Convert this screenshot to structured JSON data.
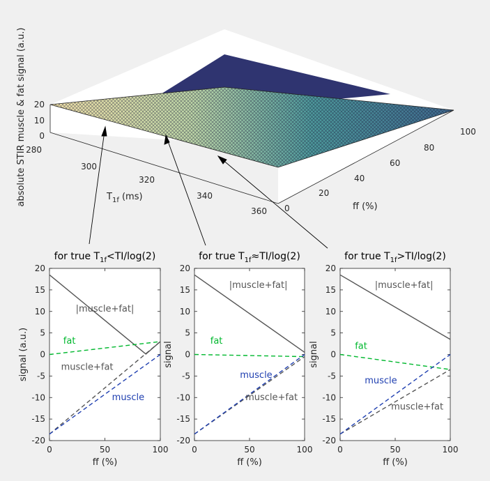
{
  "surface": {
    "zlabel": "absolute STIR muscle & fat signal (a.u.)",
    "z_ticks": [
      "20",
      "10",
      "0"
    ],
    "t1_label_main": "T",
    "t1_label_sub": "1f",
    "t1_label_unit": " (ms)",
    "t1_ticks": [
      "280",
      "300",
      "320",
      "340",
      "360"
    ],
    "ff_label": "ff (%)",
    "ff_ticks": [
      "0",
      "20",
      "40",
      "60",
      "80",
      "100"
    ]
  },
  "chart_data": [
    {
      "type": "surface",
      "xlabel": "T1f (ms)",
      "xlim": [
        280,
        360
      ],
      "ylabel": "ff (%)",
      "ylim": [
        0,
        100
      ],
      "zlabel": "absolute STIR muscle & fat signal (a.u.)",
      "zlim": [
        0,
        20
      ],
      "corner_values": [
        {
          "t1f": 280,
          "ff": 0,
          "signal": 18.5
        },
        {
          "t1f": 360,
          "ff": 0,
          "signal": 18.5
        },
        {
          "t1f": 280,
          "ff": 100,
          "signal": 3
        },
        {
          "t1f": 360,
          "ff": 100,
          "signal": 2.5
        }
      ]
    },
    {
      "type": "line",
      "title_pre": "for true T",
      "title_sub": "1f",
      "title_post": "<TI/log(2)",
      "xlabel": "ff (%)",
      "ylabel": "signal (a.u.)",
      "xlim": [
        0,
        100
      ],
      "ylim": [
        -20,
        20
      ],
      "xticks": [
        "0",
        "50",
        "100"
      ],
      "yticks": [
        "20",
        "15",
        "10",
        "5",
        "0",
        "-5",
        "-10",
        "-15",
        "-20"
      ],
      "series": [
        {
          "name": "|muscle+fat|",
          "color": "#555555",
          "dash": false,
          "x": [
            0,
            87,
            100
          ],
          "values": [
            18.5,
            0.1,
            3
          ]
        },
        {
          "name": "fat",
          "color": "#00b82e",
          "dash": true,
          "x": [
            0,
            100
          ],
          "values": [
            0,
            3
          ]
        },
        {
          "name": "muscle+fat",
          "color": "#555555",
          "dash": true,
          "x": [
            0,
            100
          ],
          "values": [
            -18.5,
            3
          ]
        },
        {
          "name": "muscle",
          "color": "#1f3fb0",
          "dash": true,
          "x": [
            0,
            100
          ],
          "values": [
            -18.5,
            0
          ]
        }
      ],
      "labels": [
        {
          "text": "|muscle+fat|",
          "color": "#555555",
          "x": 50,
          "y": 10
        },
        {
          "text": "fat",
          "color": "#00b82e",
          "x": 18,
          "y": 2.5
        },
        {
          "text": "muscle+fat",
          "color": "#555555",
          "x": 34,
          "y": -3.6
        },
        {
          "text": "muscle",
          "color": "#1f3fb0",
          "x": 71,
          "y": -10.6
        }
      ]
    },
    {
      "type": "line",
      "title_pre": "for true T",
      "title_sub": "1f",
      "title_post": "≈TI/log(2)",
      "xlabel": "ff (%)",
      "ylabel": "signal",
      "xlim": [
        0,
        100
      ],
      "ylim": [
        -20,
        20
      ],
      "xticks": [
        "0",
        "50",
        "100"
      ],
      "yticks": [
        "20",
        "15",
        "10",
        "5",
        "0",
        "-5",
        "-10",
        "-15",
        "-20"
      ],
      "series": [
        {
          "name": "|muscle+fat|",
          "color": "#555555",
          "dash": false,
          "x": [
            0,
            100
          ],
          "values": [
            18.5,
            0.5
          ]
        },
        {
          "name": "fat",
          "color": "#00b82e",
          "dash": true,
          "x": [
            0,
            100
          ],
          "values": [
            0,
            -0.5
          ]
        },
        {
          "name": "muscle+fat",
          "color": "#555555",
          "dash": true,
          "x": [
            0,
            100
          ],
          "values": [
            -18.5,
            -0.5
          ]
        },
        {
          "name": "muscle",
          "color": "#1f3fb0",
          "dash": true,
          "x": [
            0,
            100
          ],
          "values": [
            -18.5,
            0
          ]
        }
      ],
      "labels": [
        {
          "text": "|muscle+fat|",
          "color": "#555555",
          "x": 58,
          "y": 15.5
        },
        {
          "text": "fat",
          "color": "#00b82e",
          "x": 20,
          "y": 2.5
        },
        {
          "text": "muscle",
          "color": "#1f3fb0",
          "x": 56,
          "y": -5.4
        },
        {
          "text": "muscle+fat",
          "color": "#555555",
          "x": 70,
          "y": -10.6
        }
      ]
    },
    {
      "type": "line",
      "title_pre": "for true T",
      "title_sub": "1f",
      "title_post": ">TI/log(2)",
      "xlabel": "ff (%)",
      "ylabel": "signal",
      "xlim": [
        0,
        100
      ],
      "ylim": [
        -20,
        20
      ],
      "xticks": [
        "0",
        "50",
        "100"
      ],
      "yticks": [
        "20",
        "15",
        "10",
        "5",
        "0",
        "-5",
        "-10",
        "-15",
        "-20"
      ],
      "series": [
        {
          "name": "|muscle+fat|",
          "color": "#555555",
          "dash": false,
          "x": [
            0,
            100
          ],
          "values": [
            18.5,
            3.5
          ]
        },
        {
          "name": "fat",
          "color": "#00b82e",
          "dash": true,
          "x": [
            0,
            100
          ],
          "values": [
            0,
            -3.5
          ]
        },
        {
          "name": "muscle+fat",
          "color": "#555555",
          "dash": true,
          "x": [
            0,
            100
          ],
          "values": [
            -18.5,
            -3.5
          ]
        },
        {
          "name": "muscle",
          "color": "#1f3fb0",
          "dash": true,
          "x": [
            0,
            100
          ],
          "values": [
            -18.5,
            0
          ]
        }
      ],
      "labels": [
        {
          "text": "|muscle+fat|",
          "color": "#555555",
          "x": 58,
          "y": 15.5
        },
        {
          "text": "fat",
          "color": "#00b82e",
          "x": 19,
          "y": 1.3
        },
        {
          "text": "muscle",
          "color": "#1f3fb0",
          "x": 37,
          "y": -6.7
        },
        {
          "text": "muscle+fat",
          "color": "#555555",
          "x": 70,
          "y": -12.8
        }
      ]
    }
  ]
}
